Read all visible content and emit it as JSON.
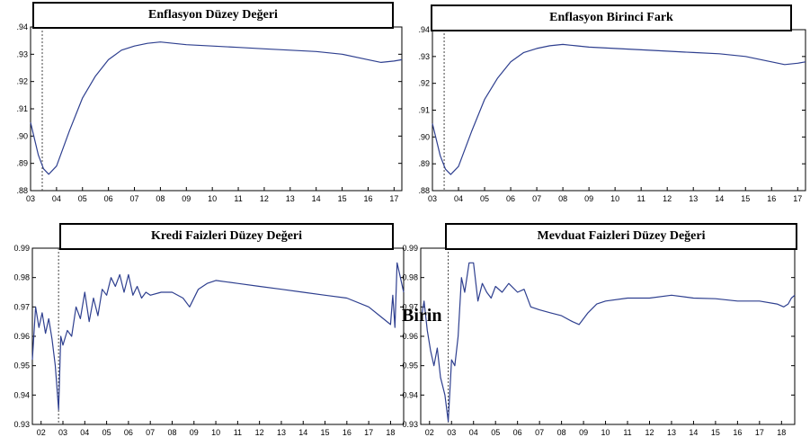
{
  "stray_text": "Birin",
  "chart_data": [
    {
      "type": "line",
      "title": "Enflasyon Düzey Değeri",
      "color": "#2e3f8f",
      "ylim": [
        0.88,
        0.94
      ],
      "yticks": [
        ".88",
        ".89",
        ".90",
        ".91",
        ".92",
        ".93",
        ".94"
      ],
      "xlim": [
        2003,
        2017.3
      ],
      "xticks": [
        "03",
        "04",
        "05",
        "06",
        "07",
        "08",
        "09",
        "10",
        "11",
        "12",
        "13",
        "14",
        "15",
        "16",
        "17"
      ],
      "vline": 2003.45,
      "series": [
        {
          "x": [
            2003.0,
            2003.3,
            2003.5,
            2003.7,
            2004.0,
            2004.5,
            2005.0,
            2005.5,
            2006.0,
            2006.5,
            2007.0,
            2007.5,
            2008.0,
            2008.5,
            2009.0,
            2010.0,
            2011.0,
            2012.0,
            2013.0,
            2014.0,
            2015.0,
            2016.0,
            2016.5,
            2017.0,
            2017.3
          ],
          "y": [
            0.905,
            0.893,
            0.888,
            0.886,
            0.889,
            0.902,
            0.914,
            0.922,
            0.928,
            0.9315,
            0.933,
            0.934,
            0.9345,
            0.934,
            0.9335,
            0.933,
            0.9325,
            0.932,
            0.9315,
            0.931,
            0.93,
            0.928,
            0.927,
            0.9275,
            0.928
          ]
        }
      ]
    },
    {
      "type": "line",
      "title": "Enflasyon Birinci Fark",
      "color": "#2e3f8f",
      "ylim": [
        0.88,
        0.94
      ],
      "yticks": [
        ".88",
        ".89",
        ".90",
        ".91",
        ".92",
        ".93",
        ".94"
      ],
      "xlim": [
        2003,
        2017.3
      ],
      "xticks": [
        "03",
        "04",
        "05",
        "06",
        "07",
        "08",
        "09",
        "10",
        "11",
        "12",
        "13",
        "14",
        "15",
        "16",
        "17"
      ],
      "vline": 2003.45,
      "series": [
        {
          "x": [
            2003.0,
            2003.3,
            2003.5,
            2003.7,
            2004.0,
            2004.5,
            2005.0,
            2005.5,
            2006.0,
            2006.5,
            2007.0,
            2007.5,
            2008.0,
            2008.5,
            2009.0,
            2010.0,
            2011.0,
            2012.0,
            2013.0,
            2014.0,
            2015.0,
            2016.0,
            2016.5,
            2017.0,
            2017.3
          ],
          "y": [
            0.905,
            0.893,
            0.888,
            0.886,
            0.889,
            0.902,
            0.914,
            0.922,
            0.928,
            0.9315,
            0.933,
            0.934,
            0.9345,
            0.934,
            0.9335,
            0.933,
            0.9325,
            0.932,
            0.9315,
            0.931,
            0.93,
            0.928,
            0.927,
            0.9275,
            0.928
          ]
        }
      ]
    },
    {
      "type": "line",
      "title": "Kredi Faizleri Düzey Değeri",
      "color": "#2e3f8f",
      "ylim": [
        0.93,
        0.99
      ],
      "yticks": [
        "0.93",
        "0.94",
        "0.95",
        "0.96",
        "0.97",
        "0.98",
        "0.99"
      ],
      "xlim": [
        2001.6,
        2018.6
      ],
      "xticks": [
        "02",
        "03",
        "04",
        "05",
        "06",
        "07",
        "08",
        "09",
        "10",
        "11",
        "12",
        "13",
        "14",
        "15",
        "16",
        "17",
        "18"
      ],
      "vline": 2002.8,
      "series": [
        {
          "x": [
            2001.6,
            2001.75,
            2001.9,
            2002.05,
            2002.2,
            2002.35,
            2002.5,
            2002.65,
            2002.8,
            2002.9,
            2003.0,
            2003.2,
            2003.4,
            2003.6,
            2003.8,
            2004.0,
            2004.2,
            2004.4,
            2004.6,
            2004.8,
            2005.0,
            2005.2,
            2005.4,
            2005.6,
            2005.8,
            2006.0,
            2006.2,
            2006.4,
            2006.6,
            2006.8,
            2007.0,
            2007.5,
            2008.0,
            2008.5,
            2008.8,
            2009.2,
            2009.6,
            2010.0,
            2011.0,
            2012.0,
            2013.0,
            2014.0,
            2015.0,
            2016.0,
            2017.0,
            2017.5,
            2018.0,
            2018.1,
            2018.2,
            2018.3,
            2018.45,
            2018.6
          ],
          "y": [
            0.952,
            0.97,
            0.963,
            0.968,
            0.961,
            0.966,
            0.959,
            0.95,
            0.935,
            0.96,
            0.957,
            0.962,
            0.96,
            0.97,
            0.966,
            0.975,
            0.965,
            0.973,
            0.967,
            0.976,
            0.974,
            0.98,
            0.977,
            0.981,
            0.975,
            0.981,
            0.974,
            0.977,
            0.973,
            0.975,
            0.974,
            0.975,
            0.975,
            0.973,
            0.97,
            0.976,
            0.978,
            0.979,
            0.978,
            0.977,
            0.976,
            0.975,
            0.974,
            0.973,
            0.97,
            0.967,
            0.964,
            0.974,
            0.963,
            0.985,
            0.98,
            0.975
          ]
        }
      ]
    },
    {
      "type": "line",
      "title": "Mevduat Faizleri Düzey Değeri",
      "color": "#2e3f8f",
      "ylim": [
        0.93,
        0.99
      ],
      "yticks": [
        "0.93",
        "0.94",
        "0.95",
        "0.96",
        "0.97",
        "0.98",
        "0.99"
      ],
      "xlim": [
        2001.6,
        2018.6
      ],
      "xticks": [
        "02",
        "03",
        "04",
        "05",
        "06",
        "07",
        "08",
        "09",
        "10",
        "11",
        "12",
        "13",
        "14",
        "15",
        "16",
        "17",
        "18"
      ],
      "vline": 2002.85,
      "series": [
        {
          "x": [
            2001.6,
            2001.75,
            2001.9,
            2002.05,
            2002.2,
            2002.35,
            2002.5,
            2002.7,
            2002.85,
            2003.0,
            2003.15,
            2003.3,
            2003.45,
            2003.6,
            2003.8,
            2004.0,
            2004.2,
            2004.4,
            2004.6,
            2004.8,
            2005.0,
            2005.3,
            2005.6,
            2006.0,
            2006.3,
            2006.6,
            2007.0,
            2007.5,
            2008.0,
            2008.5,
            2008.8,
            2009.2,
            2009.6,
            2010.0,
            2011.0,
            2012.0,
            2013.0,
            2014.0,
            2015.0,
            2016.0,
            2017.0,
            2017.8,
            2018.1,
            2018.3,
            2018.45,
            2018.6
          ],
          "y": [
            0.965,
            0.972,
            0.962,
            0.955,
            0.95,
            0.956,
            0.946,
            0.94,
            0.931,
            0.952,
            0.95,
            0.96,
            0.98,
            0.975,
            0.985,
            0.985,
            0.972,
            0.978,
            0.975,
            0.973,
            0.977,
            0.975,
            0.978,
            0.975,
            0.976,
            0.97,
            0.969,
            0.968,
            0.967,
            0.965,
            0.964,
            0.968,
            0.971,
            0.972,
            0.973,
            0.973,
            0.974,
            0.973,
            0.9728,
            0.972,
            0.972,
            0.971,
            0.97,
            0.971,
            0.973,
            0.974
          ]
        }
      ]
    }
  ]
}
